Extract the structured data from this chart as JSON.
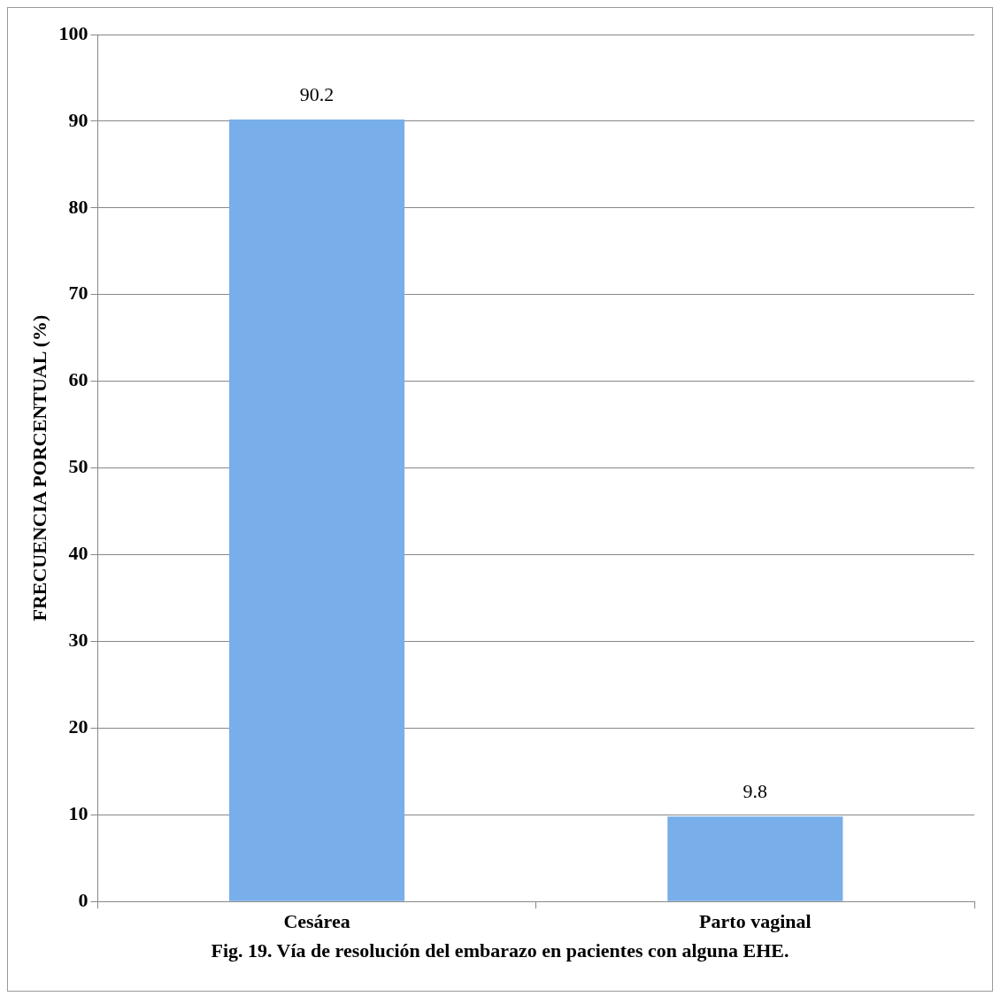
{
  "chart_data": {
    "type": "bar",
    "title": "Fig. 19. Vía de resolución del embarazo en pacientes con alguna EHE.",
    "ylabel": "FRECUENCIA PORCENTUAL (%)",
    "categories": [
      "Cesárea",
      "Parto vaginal"
    ],
    "values": [
      90.2,
      9.8
    ],
    "color": "#78aeea",
    "ylim": [
      0,
      100
    ],
    "yticks": [
      0,
      10,
      20,
      30,
      40,
      50,
      60,
      70,
      80,
      90,
      100
    ],
    "grid": "y",
    "data_labels": true
  }
}
